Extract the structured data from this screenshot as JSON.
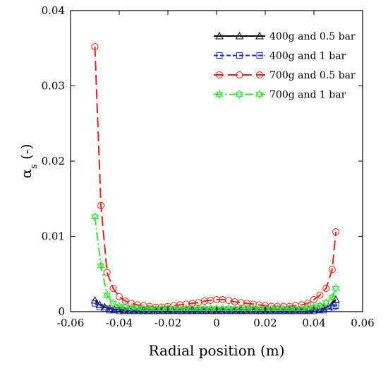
{
  "chart_data": {
    "type": "line",
    "xlabel": "Radial position (m)",
    "ylabel": "αs (-)",
    "ylabel_main": "α",
    "ylabel_sub": "s",
    "ylabel_tail": " (-)",
    "xlim": [
      -0.06,
      0.06
    ],
    "ylim": [
      0,
      0.04
    ],
    "x_ticks": [
      -0.06,
      -0.04,
      -0.02,
      0,
      0.02,
      0.04,
      0.06
    ],
    "x_tick_labels": [
      "-0.06",
      "-0.04",
      "-0.02",
      "0",
      "0.02",
      "0.04",
      "0.06"
    ],
    "y_ticks": [
      0,
      0.01,
      0.02,
      0.03,
      0.04
    ],
    "y_tick_labels": [
      "0",
      "0.01",
      "0.02",
      "0.03",
      "0.04"
    ],
    "grid": false,
    "legend_position": "top-right",
    "series": [
      {
        "name": "400g and 0.5 bar",
        "color": "#000000",
        "dash": "solid",
        "marker": "triangle",
        "x": [
          -0.05,
          -0.048,
          -0.046,
          -0.044,
          -0.042,
          -0.04,
          -0.038,
          -0.036,
          -0.034,
          -0.032,
          -0.03,
          -0.028,
          -0.026,
          -0.024,
          -0.022,
          -0.02,
          -0.018,
          -0.016,
          -0.014,
          -0.012,
          -0.01,
          -0.008,
          -0.006,
          -0.004,
          -0.002,
          0,
          0.002,
          0.004,
          0.006,
          0.008,
          0.01,
          0.012,
          0.014,
          0.016,
          0.018,
          0.02,
          0.022,
          0.024,
          0.026,
          0.028,
          0.03,
          0.032,
          0.034,
          0.036,
          0.038,
          0.04,
          0.042,
          0.044,
          0.046,
          0.048,
          0.049
        ],
        "y": [
          0.0015,
          0.0009,
          0.0006,
          0.0004,
          0.0003,
          0.0003,
          0.0002,
          0.0002,
          0.0002,
          0.0002,
          0.0002,
          0.0002,
          0.0002,
          0.0002,
          0.0002,
          0.0002,
          0.0002,
          0.0002,
          0.0002,
          0.0002,
          0.0002,
          0.0002,
          0.0002,
          0.0002,
          0.0002,
          0.0002,
          0.0002,
          0.0002,
          0.0002,
          0.0002,
          0.0002,
          0.0002,
          0.0002,
          0.0002,
          0.0002,
          0.0002,
          0.0002,
          0.0002,
          0.0002,
          0.0002,
          0.0002,
          0.0002,
          0.0002,
          0.0002,
          0.0002,
          0.0003,
          0.0003,
          0.0004,
          0.0007,
          0.0012,
          0.0016
        ]
      },
      {
        "name": "400g and 1 bar",
        "color": "#1f2fd6",
        "dash": "short",
        "marker": "square",
        "x": [
          -0.05,
          -0.048,
          -0.046,
          -0.044,
          -0.042,
          -0.04,
          -0.038,
          -0.036,
          -0.034,
          -0.032,
          -0.03,
          -0.028,
          -0.026,
          -0.024,
          -0.022,
          -0.02,
          -0.018,
          -0.016,
          -0.014,
          -0.012,
          -0.01,
          -0.008,
          -0.006,
          -0.004,
          -0.002,
          0,
          0.002,
          0.004,
          0.006,
          0.008,
          0.01,
          0.012,
          0.014,
          0.016,
          0.018,
          0.02,
          0.022,
          0.024,
          0.026,
          0.028,
          0.03,
          0.032,
          0.034,
          0.036,
          0.038,
          0.04,
          0.042,
          0.044,
          0.046,
          0.048,
          0.049
        ],
        "y": [
          0.0011,
          0.0006,
          0.0004,
          0.0002,
          0.0002,
          0.0001,
          0.0001,
          0.0001,
          0.0001,
          0.0001,
          0.0001,
          0.0001,
          0.0001,
          0.0001,
          0.0001,
          0.0001,
          0.0001,
          0.0001,
          0.0001,
          0.0001,
          0.0001,
          0.0001,
          0.0001,
          0.0001,
          0.0001,
          0.0001,
          0.0001,
          0.0001,
          0.0001,
          0.0001,
          0.0001,
          0.0001,
          0.0001,
          0.0001,
          0.0001,
          0.0001,
          0.0001,
          0.0001,
          0.0001,
          0.0001,
          0.0001,
          0.0001,
          0.0001,
          0.0001,
          0.0001,
          0.0001,
          0.0002,
          0.0002,
          0.0004,
          0.0006,
          0.0008
        ]
      },
      {
        "name": "700g and 0.5 bar",
        "color": "#e8201a",
        "dash": "long",
        "marker": "circle",
        "x": [
          -0.05,
          -0.0475,
          -0.045,
          -0.0425,
          -0.04,
          -0.0375,
          -0.035,
          -0.0325,
          -0.03,
          -0.0275,
          -0.025,
          -0.0225,
          -0.02,
          -0.0175,
          -0.015,
          -0.0125,
          -0.01,
          -0.0075,
          -0.005,
          -0.0025,
          0,
          0.0025,
          0.005,
          0.0075,
          0.01,
          0.0125,
          0.015,
          0.0175,
          0.02,
          0.0225,
          0.025,
          0.0275,
          0.03,
          0.0325,
          0.035,
          0.0375,
          0.04,
          0.0425,
          0.045,
          0.0475,
          0.049
        ],
        "y": [
          0.0352,
          0.0141,
          0.0052,
          0.0031,
          0.002,
          0.0014,
          0.0011,
          0.0009,
          0.0008,
          0.0007,
          0.0006,
          0.0006,
          0.0007,
          0.0008,
          0.0009,
          0.001,
          0.0011,
          0.0012,
          0.0014,
          0.0015,
          0.0016,
          0.0016,
          0.0015,
          0.0013,
          0.0012,
          0.0011,
          0.001,
          0.0009,
          0.0008,
          0.0007,
          0.0007,
          0.0007,
          0.0007,
          0.0008,
          0.0009,
          0.0011,
          0.0016,
          0.0022,
          0.0031,
          0.0056,
          0.0106
        ]
      },
      {
        "name": "700g and 1 bar",
        "color": "#39e039",
        "dash": "dashdot",
        "marker": "star",
        "x": [
          -0.05,
          -0.0475,
          -0.045,
          -0.0425,
          -0.04,
          -0.0375,
          -0.035,
          -0.0325,
          -0.03,
          -0.0275,
          -0.025,
          -0.0225,
          -0.02,
          -0.0175,
          -0.015,
          -0.0125,
          -0.01,
          -0.0075,
          -0.005,
          -0.0025,
          0,
          0.0025,
          0.005,
          0.0075,
          0.01,
          0.0125,
          0.015,
          0.0175,
          0.02,
          0.0225,
          0.025,
          0.0275,
          0.03,
          0.0325,
          0.035,
          0.0375,
          0.04,
          0.0425,
          0.045,
          0.0475,
          0.049
        ],
        "y": [
          0.0126,
          0.0061,
          0.0022,
          0.0011,
          0.0007,
          0.0006,
          0.0005,
          0.0005,
          0.0004,
          0.0004,
          0.0004,
          0.0004,
          0.0004,
          0.0004,
          0.0004,
          0.0004,
          0.0004,
          0.0004,
          0.0004,
          0.0004,
          0.0004,
          0.0004,
          0.0004,
          0.0004,
          0.0004,
          0.0004,
          0.0004,
          0.0004,
          0.0004,
          0.0004,
          0.0004,
          0.0004,
          0.0004,
          0.0004,
          0.0004,
          0.0005,
          0.0006,
          0.0008,
          0.0012,
          0.0019,
          0.0031
        ]
      }
    ]
  }
}
